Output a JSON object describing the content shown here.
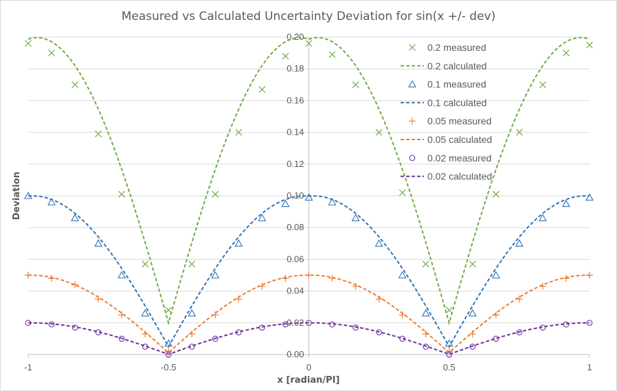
{
  "chart_data": {
    "type": "scatter",
    "title": "Measured vs Calculated Uncertainty Deviation for sin(x +/- dev)",
    "xlabel": "x [radian/PI]",
    "ylabel": "Deviation",
    "xlim": [
      -1,
      1
    ],
    "ylim": [
      0,
      0.2
    ],
    "x_ticks": [
      "-1",
      "-0.5",
      "0",
      "0.5",
      "1"
    ],
    "y_ticks": [
      "0.00",
      "0.02",
      "0.04",
      "0.06",
      "0.08",
      "0.10",
      "0.12",
      "0.14",
      "0.16",
      "0.18",
      "0.20"
    ],
    "grid": "horizontal",
    "legend_position": "right",
    "x_measured": [
      -1.0,
      -0.9167,
      -0.8333,
      -0.75,
      -0.6667,
      -0.5833,
      -0.5,
      -0.4167,
      -0.3333,
      -0.25,
      -0.1667,
      -0.0833,
      0.0,
      0.0833,
      0.1667,
      0.25,
      0.3333,
      0.4167,
      0.5,
      0.5833,
      0.6667,
      0.75,
      0.8333,
      0.9167,
      1.0
    ],
    "series": [
      {
        "name": "0.2 measured",
        "kind": "measured",
        "marker": "x",
        "color": "#70ad47",
        "y": [
          0.196,
          0.19,
          0.17,
          0.139,
          0.101,
          0.057,
          0.028,
          0.057,
          0.101,
          0.14,
          0.167,
          0.188,
          0.196,
          0.189,
          0.17,
          0.14,
          0.102,
          0.057,
          0.028,
          0.057,
          0.101,
          0.14,
          0.17,
          0.19,
          0.195
        ]
      },
      {
        "name": "0.2 calculated",
        "kind": "calculated",
        "dev": 0.2,
        "color": "#70ad47"
      },
      {
        "name": "0.1 measured",
        "kind": "measured",
        "marker": "triangle",
        "color": "#2e75b6",
        "y": [
          0.1,
          0.096,
          0.086,
          0.07,
          0.05,
          0.026,
          0.007,
          0.026,
          0.05,
          0.07,
          0.086,
          0.095,
          0.099,
          0.096,
          0.086,
          0.07,
          0.05,
          0.026,
          0.007,
          0.026,
          0.05,
          0.07,
          0.086,
          0.095,
          0.099
        ]
      },
      {
        "name": "0.1 calculated",
        "kind": "calculated",
        "dev": 0.1,
        "color": "#2e75b6"
      },
      {
        "name": "0.05 measured",
        "kind": "measured",
        "marker": "plus",
        "color": "#ed7d31",
        "y": [
          0.05,
          0.048,
          0.044,
          0.035,
          0.025,
          0.013,
          0.002,
          0.013,
          0.025,
          0.035,
          0.043,
          0.048,
          0.05,
          0.048,
          0.043,
          0.035,
          0.025,
          0.013,
          0.002,
          0.013,
          0.025,
          0.035,
          0.043,
          0.048,
          0.05
        ]
      },
      {
        "name": "0.05 calculated",
        "kind": "calculated",
        "dev": 0.05,
        "color": "#ed7d31"
      },
      {
        "name": "0.02 measured",
        "kind": "measured",
        "marker": "circle",
        "color": "#7030a0",
        "y": [
          0.02,
          0.019,
          0.017,
          0.014,
          0.01,
          0.005,
          0.0,
          0.005,
          0.01,
          0.014,
          0.017,
          0.019,
          0.02,
          0.019,
          0.017,
          0.014,
          0.01,
          0.005,
          0.0,
          0.005,
          0.01,
          0.014,
          0.017,
          0.019,
          0.02
        ]
      },
      {
        "name": "0.02 calculated",
        "kind": "calculated",
        "dev": 0.02,
        "color": "#7030a0"
      }
    ]
  }
}
